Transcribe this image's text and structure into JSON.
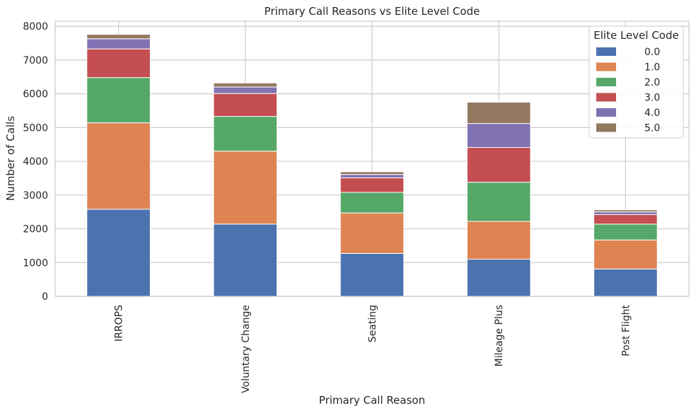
{
  "chart_data": {
    "type": "bar",
    "stacked": true,
    "title": "Primary Call Reasons vs Elite Level Code",
    "xlabel": "Primary Call Reason",
    "ylabel": "Number of Calls",
    "categories": [
      "IRROPS",
      "Voluntary Change",
      "Seating",
      "Mileage Plus",
      "Post Flight"
    ],
    "ylim": [
      0,
      8150
    ],
    "yticks": [
      0,
      1000,
      2000,
      3000,
      4000,
      5000,
      6000,
      7000,
      8000
    ],
    "grid": true,
    "legend": {
      "title": "Elite Level Code",
      "placement": "top-right"
    },
    "series": [
      {
        "name": "0.0",
        "color": "#4c72b0",
        "values": [
          2580,
          2140,
          1270,
          1100,
          810
        ]
      },
      {
        "name": "1.0",
        "color": "#dd8452",
        "values": [
          2560,
          2160,
          1200,
          1120,
          860
        ]
      },
      {
        "name": "2.0",
        "color": "#55a868",
        "values": [
          1340,
          1030,
          610,
          1160,
          470
        ]
      },
      {
        "name": "3.0",
        "color": "#c44e52",
        "values": [
          850,
          680,
          430,
          1030,
          280
        ]
      },
      {
        "name": "4.0",
        "color": "#8172b3",
        "values": [
          300,
          190,
          100,
          710,
          80
        ]
      },
      {
        "name": "5.0",
        "color": "#937860",
        "values": [
          130,
          120,
          80,
          630,
          60
        ]
      }
    ]
  }
}
